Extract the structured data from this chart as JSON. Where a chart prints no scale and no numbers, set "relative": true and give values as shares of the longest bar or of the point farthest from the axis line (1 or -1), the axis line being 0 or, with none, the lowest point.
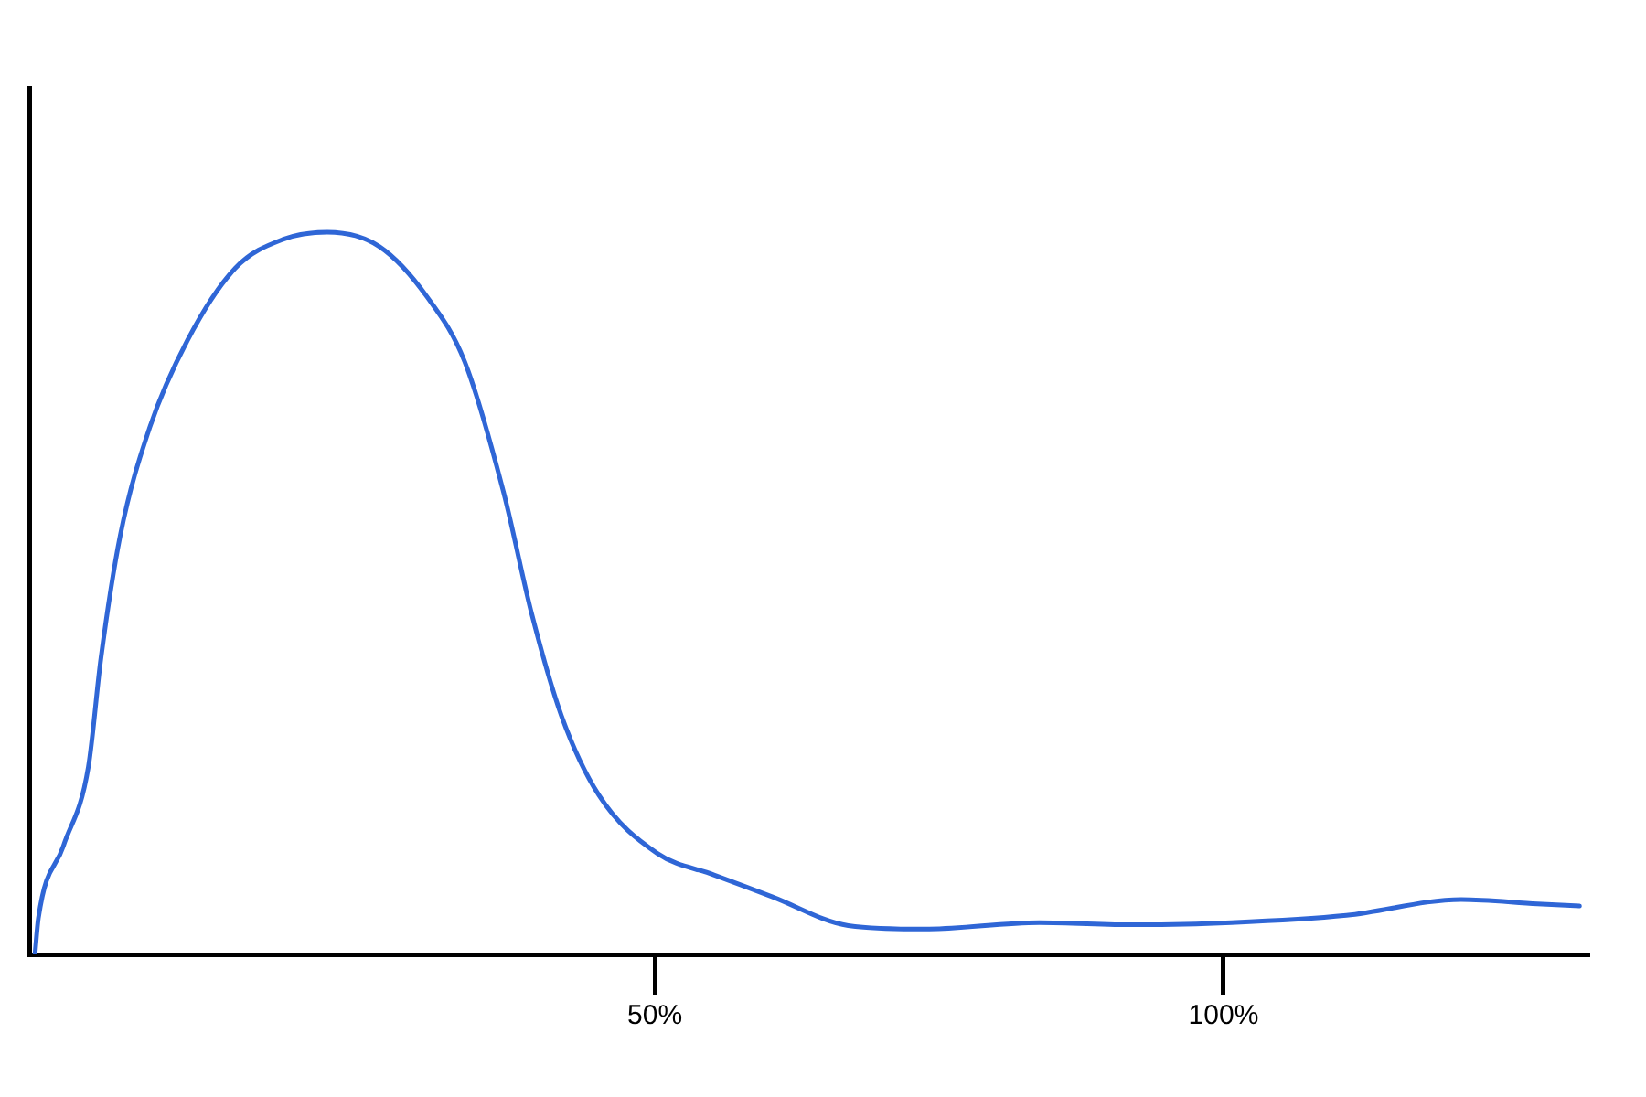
{
  "chart_data": {
    "type": "line",
    "relative": true,
    "color": "#2f66d6",
    "marker": "none",
    "grid": false,
    "legend": false,
    "x": [
      -4.5,
      -4.2,
      -2.0,
      0.2,
      1.3,
      3.0,
      5.6,
      8.9,
      13.1,
      17.3,
      21.2,
      25.8,
      30.0,
      33.3,
      36.7,
      39.2,
      41.8,
      45.1,
      50.2,
      55.2,
      60.3,
      67.0,
      73.7,
      83.8,
      92.2,
      100.7,
      110.8,
      120.9,
      127.6,
      131.3
    ],
    "values": [
      0,
      0.05,
      0.15,
      0.26,
      0.41,
      0.58,
      0.73,
      0.85,
      0.95,
      0.99,
      1.0,
      0.98,
      0.91,
      0.82,
      0.64,
      0.47,
      0.33,
      0.22,
      0.14,
      0.11,
      0.08,
      0.04,
      0.035,
      0.044,
      0.041,
      0.044,
      0.054,
      0.076,
      0.07,
      0.067
    ],
    "xlim": [
      -5,
      132
    ],
    "xticks": [
      {
        "value": 50,
        "label": "50%"
      },
      {
        "value": 100,
        "label": "100%"
      }
    ]
  }
}
